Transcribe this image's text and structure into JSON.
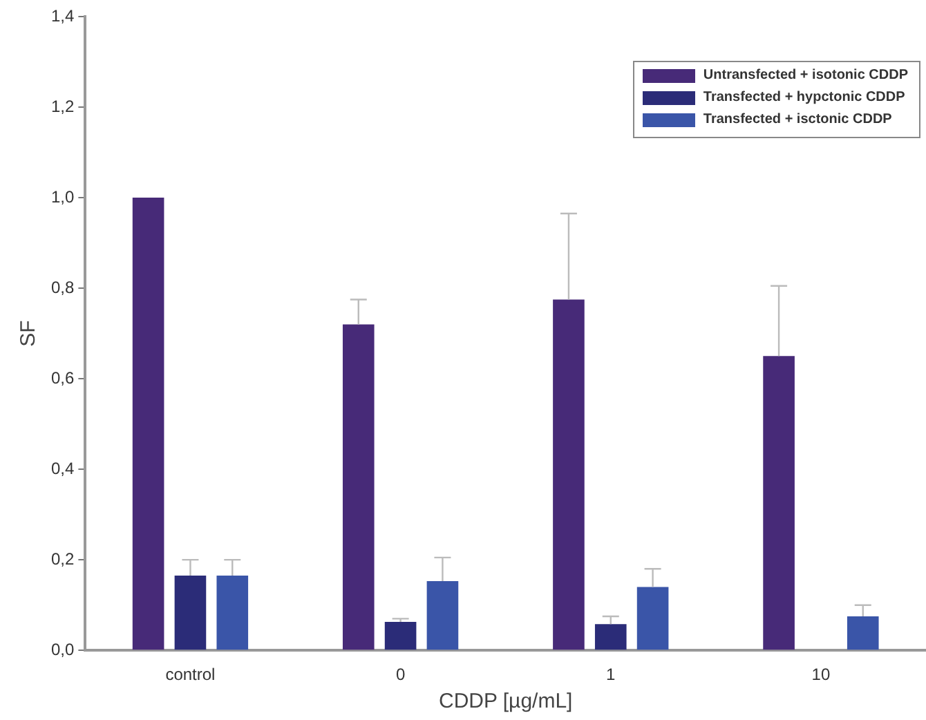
{
  "chart_data": {
    "type": "bar",
    "xlabel": "CDDP [µg/mL]",
    "ylabel": "SF",
    "categories": [
      "control",
      "0",
      "1",
      "10"
    ],
    "series": [
      {
        "name": "Untransfected + isotonic CDDP",
        "color": "#472a78",
        "values": [
          1.0,
          0.72,
          0.775,
          0.65
        ],
        "errors": [
          null,
          [
            0.72,
            0.775
          ],
          [
            0.775,
            0.965
          ],
          [
            0.65,
            0.805
          ]
        ]
      },
      {
        "name": "Transfected + hypctonic CDDP",
        "color": "#2b2c78",
        "values": [
          0.165,
          0.063,
          0.058,
          0
        ],
        "errors": [
          [
            0.165,
            0.2
          ],
          [
            0.063,
            0.07
          ],
          [
            0.058,
            0.075
          ],
          null
        ]
      },
      {
        "name": "Transfected + isctonic CDDP",
        "color": "#3a55a8",
        "values": [
          0.165,
          0.153,
          0.14,
          0.075
        ],
        "errors": [
          [
            0.165,
            0.2
          ],
          [
            0.153,
            0.205
          ],
          [
            0.14,
            0.18
          ],
          [
            0.075,
            0.1
          ]
        ]
      }
    ],
    "ylim": [
      0,
      1.4
    ],
    "yticks": [
      {
        "value": 0,
        "label": "0,0"
      },
      {
        "value": 0.2,
        "label": "0,2"
      },
      {
        "value": 0.4,
        "label": "0,4"
      },
      {
        "value": 0.6,
        "label": "0,6"
      },
      {
        "value": 0.8,
        "label": "0,8"
      },
      {
        "value": 1,
        "label": "1,0"
      },
      {
        "value": 1.2,
        "label": "1,2"
      },
      {
        "value": 1.4,
        "label": "1,4"
      }
    ],
    "grid": false,
    "legend": "top right"
  }
}
